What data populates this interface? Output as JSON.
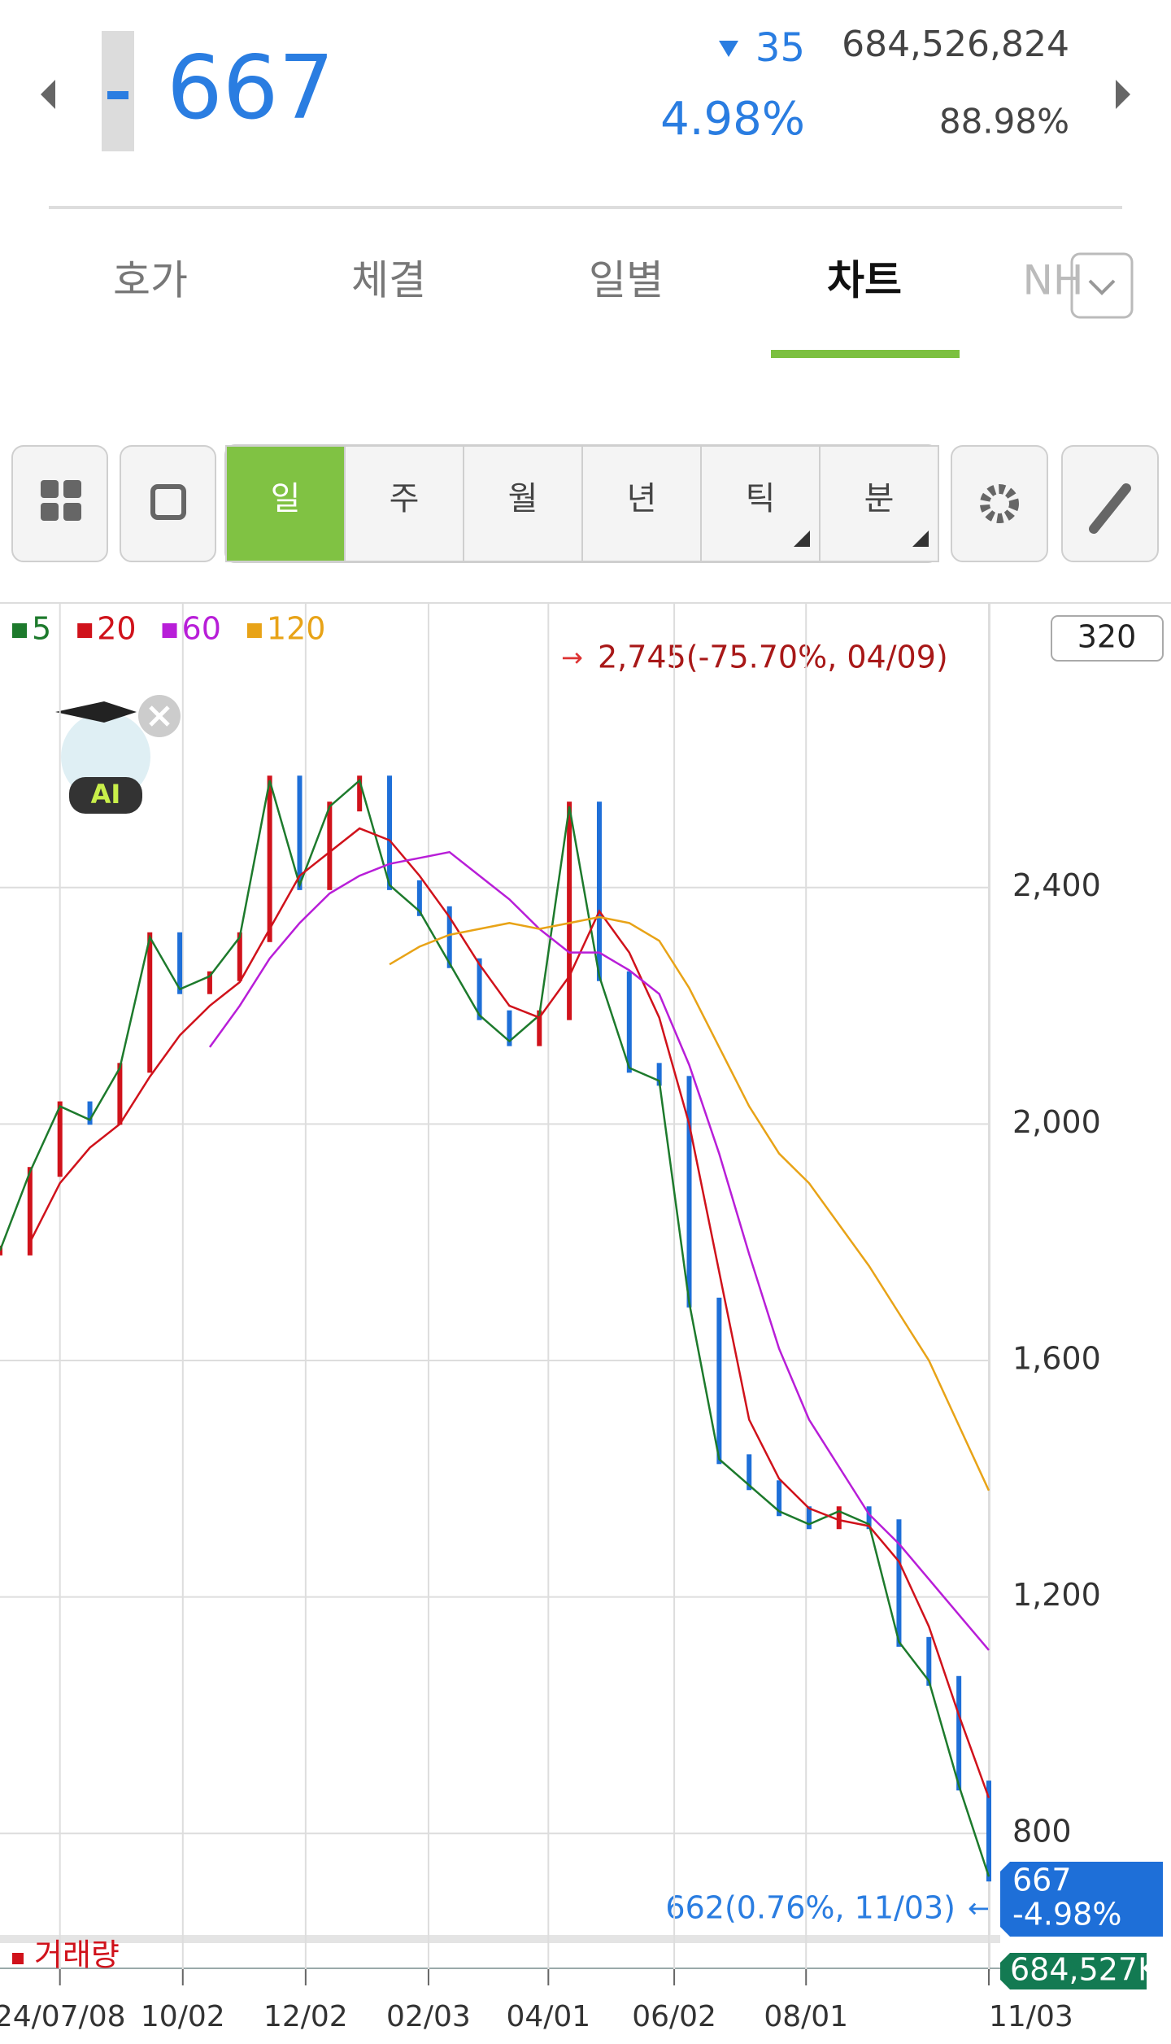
{
  "header": {
    "price": "667",
    "change": "35",
    "change_rate": "4.98%",
    "volume": "684,526,824",
    "ratio": "88.98%"
  },
  "tabs": [
    "호가",
    "체결",
    "일별",
    "차트",
    "NH"
  ],
  "periods": [
    "일",
    "주",
    "월",
    "년",
    "틱",
    "분"
  ],
  "ai_badge": "AI",
  "chart_data": {
    "type": "line",
    "x": [
      0,
      10,
      20,
      30,
      40,
      50,
      60,
      70,
      80,
      90,
      100,
      110,
      120,
      130,
      140,
      150,
      160,
      170,
      180,
      190,
      200,
      210,
      220,
      230,
      240,
      250,
      260,
      270,
      280,
      290,
      300,
      310,
      320,
      330
    ],
    "series": [
      {
        "name": "5",
        "color": "#1d7a2c",
        "values": [
          1786,
          1919,
          2030,
          2007,
          2095,
          2316,
          2228,
          2250,
          2316,
          2581,
          2404,
          2537,
          2581,
          2404,
          2360,
          2272,
          2184,
          2140,
          2184,
          2537,
          2250,
          2095,
          2073,
          1698,
          1433,
          1389,
          1345,
          1323,
          1345,
          1323,
          1124,
          1058,
          881,
          727
        ]
      },
      {
        "name": "20",
        "color": "#d0121b",
        "values": [
          null,
          1800,
          1900,
          1960,
          2000,
          2080,
          2150,
          2200,
          2240,
          2330,
          2420,
          2460,
          2500,
          2480,
          2420,
          2350,
          2270,
          2200,
          2180,
          2250,
          2360,
          2290,
          2180,
          2000,
          1750,
          1500,
          1400,
          1350,
          1330,
          1320,
          1260,
          1150,
          1000,
          860
        ]
      },
      {
        "name": "60",
        "color": "#b81ed8",
        "values": [
          null,
          null,
          null,
          null,
          null,
          null,
          null,
          2130,
          2200,
          2280,
          2340,
          2390,
          2420,
          2440,
          2450,
          2460,
          2420,
          2380,
          2330,
          2290,
          2290,
          2260,
          2220,
          2100,
          1950,
          1780,
          1620,
          1500,
          1420,
          1340,
          1290,
          1230,
          1170,
          1110
        ]
      },
      {
        "name": "120",
        "color": "#e8a317",
        "values": [
          null,
          null,
          null,
          null,
          null,
          null,
          null,
          null,
          null,
          null,
          null,
          null,
          null,
          2270,
          2300,
          2320,
          2330,
          2340,
          2330,
          2340,
          2350,
          2340,
          2310,
          2230,
          2130,
          2030,
          1950,
          1900,
          1830,
          1760,
          1680,
          1600,
          1490,
          1380
        ]
      }
    ],
    "xlim": [
      0,
      330
    ],
    "xticks": [
      {
        "value": 20,
        "label": "24/07/08"
      },
      {
        "value": 61,
        "label": "10/02"
      },
      {
        "value": 102,
        "label": "12/02"
      },
      {
        "value": 143,
        "label": "02/03"
      },
      {
        "value": 183,
        "label": "04/01"
      },
      {
        "value": 225,
        "label": "06/02"
      },
      {
        "value": 269,
        "label": "08/01"
      },
      {
        "value": 330,
        "label": "11/03"
      }
    ],
    "ylim": [
      620,
      2880
    ],
    "yticks": [
      800,
      {
        "value": 1200,
        "label": "1,200"
      },
      {
        "value": 1600,
        "label": "1,600"
      },
      {
        "value": 2000,
        "label": "2,000"
      },
      {
        "value": 2400,
        "label": "2,400"
      }
    ],
    "grid": true,
    "legend_position": "top-left",
    "scale_badge": "320",
    "annotations": [
      "2,745(-75.70%, 04/09)",
      "662(0.76%, 11/03)"
    ],
    "last_price": "667",
    "last_change": "-4.98%",
    "volume_label": "거래량",
    "volume_value": "684,527K"
  }
}
